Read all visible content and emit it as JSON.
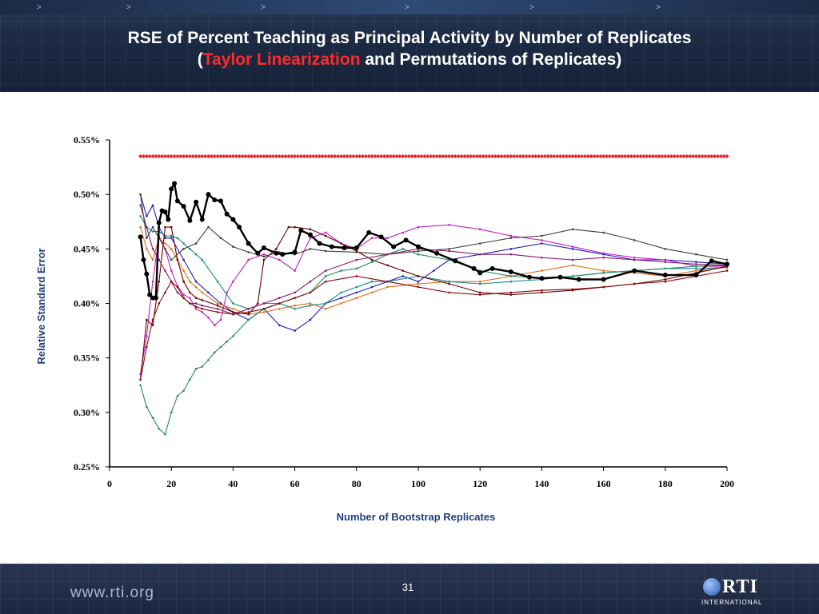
{
  "header": {
    "title_line1": "RSE of Percent Teaching as Principal Activity by Number of Replicates",
    "title_open_paren": "(",
    "title_highlight": "Taylor Linearization",
    "title_rest": " and Permutations of Replicates)"
  },
  "footer": {
    "url": "www.rti.org",
    "page_number": "31",
    "logo_text": "RTI",
    "logo_subtext": "INTERNATIONAL"
  },
  "colors": {
    "taylor": "#e8262b",
    "axis_label": "#1f3f7a",
    "series": [
      "#000000",
      "#1f1fbf",
      "#c020c0",
      "#e0701a",
      "#1a8a8a",
      "#6a0000",
      "#404040",
      "#2a8a5a",
      "#8a1a6a",
      "#8a0a0a"
    ]
  },
  "chart_data": {
    "type": "line",
    "xlabel": "Number of Bootstrap Replicates",
    "ylabel": "Relative Standard Error",
    "xlim": [
      0,
      200
    ],
    "ylim": [
      0.25,
      0.55
    ],
    "xticks": [
      0,
      20,
      40,
      60,
      80,
      100,
      120,
      140,
      160,
      180,
      200
    ],
    "yticks": [
      "0.25%",
      "0.30%",
      "0.35%",
      "0.40%",
      "0.45%",
      "0.50%",
      "0.55%"
    ],
    "ytick_values": [
      0.25,
      0.3,
      0.35,
      0.4,
      0.45,
      0.5,
      0.55
    ],
    "grid": false,
    "taylor_linearization": {
      "x": [
        10,
        200
      ],
      "y": 0.535
    },
    "series": [
      {
        "x": [
          10,
          11,
          12,
          13,
          14,
          15,
          16,
          17,
          18,
          19,
          20,
          21,
          22,
          24,
          26,
          28,
          30,
          32,
          34,
          36,
          38,
          40,
          42,
          45,
          48,
          50,
          54,
          56,
          60,
          62,
          65,
          68,
          72,
          76,
          80,
          84,
          88,
          92,
          96,
          100,
          106,
          112,
          118,
          120,
          124,
          130,
          136,
          140,
          146,
          152,
          160,
          170,
          180,
          190,
          195,
          200
        ],
        "y": [
          0.461,
          0.44,
          0.427,
          0.408,
          0.405,
          0.405,
          0.474,
          0.485,
          0.484,
          0.477,
          0.505,
          0.51,
          0.494,
          0.489,
          0.476,
          0.493,
          0.477,
          0.5,
          0.495,
          0.494,
          0.482,
          0.477,
          0.47,
          0.455,
          0.446,
          0.451,
          0.446,
          0.445,
          0.447,
          0.467,
          0.463,
          0.455,
          0.452,
          0.451,
          0.451,
          0.465,
          0.461,
          0.452,
          0.458,
          0.452,
          0.446,
          0.439,
          0.432,
          0.428,
          0.432,
          0.429,
          0.424,
          0.423,
          0.424,
          0.422,
          0.422,
          0.43,
          0.426,
          0.426,
          0.439,
          0.436
        ]
      },
      {
        "x": [
          10,
          12,
          14,
          16,
          18,
          20,
          24,
          28,
          32,
          36,
          40,
          45,
          50,
          55,
          60,
          65,
          70,
          75,
          80,
          85,
          90,
          95,
          100,
          105,
          110,
          120,
          130,
          140,
          150,
          160,
          170,
          180,
          190,
          200
        ],
        "y": [
          0.5,
          0.48,
          0.49,
          0.47,
          0.46,
          0.46,
          0.44,
          0.42,
          0.41,
          0.4,
          0.392,
          0.385,
          0.395,
          0.38,
          0.375,
          0.385,
          0.4,
          0.405,
          0.41,
          0.415,
          0.42,
          0.425,
          0.42,
          0.43,
          0.44,
          0.445,
          0.45,
          0.455,
          0.45,
          0.445,
          0.44,
          0.44,
          0.438,
          0.436
        ]
      },
      {
        "x": [
          10,
          12,
          14,
          16,
          18,
          20,
          22,
          24,
          26,
          28,
          30,
          32,
          34,
          36,
          38,
          40,
          45,
          50,
          55,
          60,
          65,
          70,
          75,
          80,
          85,
          90,
          95,
          100,
          110,
          120,
          130,
          140,
          150,
          160,
          170,
          180,
          190,
          200
        ],
        "y": [
          0.335,
          0.37,
          0.42,
          0.462,
          0.45,
          0.43,
          0.416,
          0.408,
          0.405,
          0.395,
          0.392,
          0.387,
          0.38,
          0.385,
          0.41,
          0.42,
          0.44,
          0.445,
          0.44,
          0.43,
          0.46,
          0.465,
          0.455,
          0.45,
          0.46,
          0.46,
          0.465,
          0.47,
          0.472,
          0.468,
          0.462,
          0.458,
          0.452,
          0.446,
          0.442,
          0.44,
          0.434,
          0.434
        ]
      },
      {
        "x": [
          10,
          12,
          14,
          16,
          18,
          20,
          22,
          24,
          26,
          28,
          30,
          35,
          40,
          45,
          50,
          55,
          60,
          65,
          70,
          75,
          80,
          85,
          90,
          100,
          110,
          120,
          130,
          140,
          150,
          160,
          170,
          180,
          190,
          200
        ],
        "y": [
          0.47,
          0.45,
          0.44,
          0.46,
          0.455,
          0.45,
          0.44,
          0.43,
          0.42,
          0.415,
          0.41,
          0.4,
          0.395,
          0.39,
          0.392,
          0.395,
          0.398,
          0.4,
          0.395,
          0.4,
          0.405,
          0.41,
          0.415,
          0.418,
          0.42,
          0.42,
          0.425,
          0.43,
          0.435,
          0.43,
          0.428,
          0.425,
          0.43,
          0.433
        ]
      },
      {
        "x": [
          10,
          12,
          14,
          16,
          18,
          20,
          22,
          24,
          26,
          28,
          30,
          35,
          40,
          45,
          50,
          55,
          60,
          65,
          70,
          75,
          80,
          85,
          90,
          100,
          110,
          120,
          130,
          140,
          150,
          160,
          170,
          180,
          190,
          200
        ],
        "y": [
          0.48,
          0.47,
          0.466,
          0.466,
          0.462,
          0.462,
          0.46,
          0.455,
          0.45,
          0.445,
          0.44,
          0.42,
          0.4,
          0.395,
          0.4,
          0.4,
          0.395,
          0.398,
          0.4,
          0.41,
          0.415,
          0.42,
          0.42,
          0.425,
          0.42,
          0.418,
          0.42,
          0.422,
          0.425,
          0.428,
          0.43,
          0.432,
          0.432,
          0.433
        ]
      },
      {
        "x": [
          10,
          12,
          14,
          16,
          18,
          20,
          22,
          24,
          26,
          28,
          30,
          35,
          40,
          45,
          48,
          50,
          54,
          58,
          60,
          65,
          70,
          75,
          80,
          85,
          90,
          95,
          100,
          110,
          120,
          130,
          140,
          150,
          160,
          170,
          180,
          190,
          200
        ],
        "y": [
          0.33,
          0.385,
          0.38,
          0.42,
          0.47,
          0.47,
          0.44,
          0.42,
          0.41,
          0.405,
          0.403,
          0.398,
          0.392,
          0.39,
          0.4,
          0.44,
          0.45,
          0.47,
          0.47,
          0.468,
          0.462,
          0.455,
          0.448,
          0.44,
          0.435,
          0.43,
          0.425,
          0.418,
          0.41,
          0.408,
          0.41,
          0.412,
          0.415,
          0.418,
          0.422,
          0.428,
          0.434
        ]
      },
      {
        "x": [
          10,
          12,
          14,
          16,
          18,
          20,
          24,
          28,
          32,
          36,
          40,
          45,
          50,
          55,
          60,
          65,
          70,
          80,
          90,
          100,
          110,
          120,
          130,
          140,
          150,
          160,
          170,
          180,
          190,
          200
        ],
        "y": [
          0.5,
          0.46,
          0.47,
          0.46,
          0.45,
          0.44,
          0.45,
          0.455,
          0.47,
          0.46,
          0.452,
          0.447,
          0.443,
          0.447,
          0.445,
          0.45,
          0.448,
          0.447,
          0.445,
          0.448,
          0.45,
          0.455,
          0.46,
          0.462,
          0.468,
          0.465,
          0.458,
          0.45,
          0.445,
          0.44
        ]
      },
      {
        "x": [
          10,
          12,
          14,
          16,
          18,
          20,
          22,
          24,
          26,
          28,
          30,
          32,
          34,
          36,
          38,
          40,
          45,
          50,
          55,
          60,
          65,
          70,
          75,
          80,
          85,
          90,
          95,
          100,
          110,
          120,
          130,
          140,
          150,
          160,
          170,
          180,
          190,
          200
        ],
        "y": [
          0.325,
          0.305,
          0.295,
          0.285,
          0.28,
          0.3,
          0.315,
          0.32,
          0.33,
          0.34,
          0.342,
          0.348,
          0.355,
          0.36,
          0.365,
          0.37,
          0.385,
          0.395,
          0.4,
          0.405,
          0.41,
          0.425,
          0.43,
          0.432,
          0.438,
          0.445,
          0.45,
          0.445,
          0.44,
          0.43,
          0.425,
          0.423,
          0.425,
          0.428,
          0.43,
          0.432,
          0.434,
          0.435
        ]
      },
      {
        "x": [
          10,
          12,
          14,
          16,
          18,
          20,
          22,
          24,
          26,
          28,
          30,
          35,
          40,
          45,
          50,
          55,
          60,
          65,
          70,
          80,
          90,
          100,
          110,
          120,
          130,
          140,
          150,
          160,
          170,
          180,
          190,
          200
        ],
        "y": [
          0.49,
          0.47,
          0.45,
          0.44,
          0.43,
          0.42,
          0.41,
          0.405,
          0.4,
          0.4,
          0.398,
          0.395,
          0.39,
          0.395,
          0.4,
          0.405,
          0.41,
          0.42,
          0.43,
          0.44,
          0.445,
          0.45,
          0.448,
          0.445,
          0.445,
          0.442,
          0.44,
          0.442,
          0.44,
          0.438,
          0.436,
          0.435
        ]
      },
      {
        "x": [
          10,
          12,
          14,
          16,
          18,
          20,
          22,
          24,
          26,
          28,
          30,
          35,
          40,
          45,
          50,
          55,
          60,
          65,
          70,
          80,
          90,
          100,
          110,
          120,
          130,
          140,
          150,
          160,
          170,
          180,
          190,
          200
        ],
        "y": [
          0.33,
          0.36,
          0.385,
          0.4,
          0.41,
          0.42,
          0.415,
          0.405,
          0.4,
          0.397,
          0.395,
          0.392,
          0.39,
          0.392,
          0.395,
          0.4,
          0.405,
          0.41,
          0.42,
          0.425,
          0.42,
          0.415,
          0.41,
          0.408,
          0.41,
          0.412,
          0.413,
          0.415,
          0.418,
          0.42,
          0.425,
          0.43
        ]
      }
    ]
  }
}
